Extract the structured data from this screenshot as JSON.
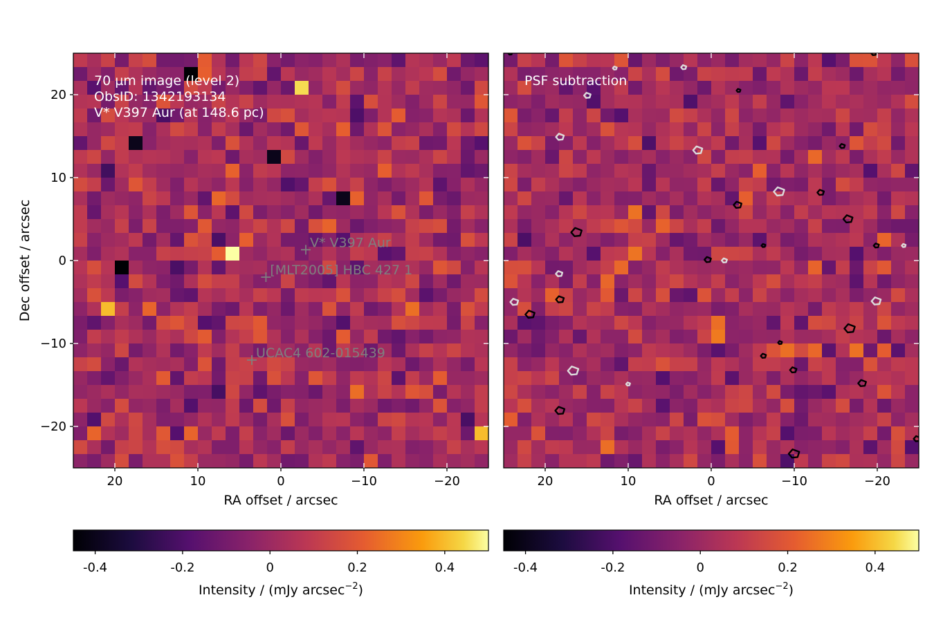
{
  "chart_data": [
    {
      "type": "heatmap",
      "panel": "left",
      "title": "",
      "annotations": [
        "70 µm image (level 2)",
        "ObsID: 1342193134",
        "V* V397 Aur (at 148.6 pc)"
      ],
      "xlabel": "RA offset / arcsec",
      "ylabel": "Dec offset / arcsec",
      "xlim": [
        25,
        -25
      ],
      "ylim": [
        -25,
        25
      ],
      "xticks": [
        20,
        10,
        0,
        -10,
        -20
      ],
      "xtick_labels": [
        "20",
        "10",
        "0",
        "−10",
        "−20"
      ],
      "yticks": [
        20,
        10,
        0,
        -10,
        -20
      ],
      "ytick_labels": [
        "20",
        "10",
        "0",
        "−10",
        "−20"
      ],
      "grid": false,
      "colormap": "inferno",
      "vmin": -0.45,
      "vmax": 0.5,
      "pixel_grid": [
        30,
        30
      ],
      "sources": [
        {
          "name": "V* V397 Aur",
          "x": -3.0,
          "y": 1.3
        },
        {
          "name": "[MLT2005] HBC 427 1",
          "x": 1.8,
          "y": -2.0
        },
        {
          "name": "UCAC4 602-015439",
          "x": 3.5,
          "y": -12.0
        }
      ],
      "bright_pixels": [
        {
          "x": 6.0,
          "y": 1.5,
          "value": 0.5
        },
        {
          "x": -3.0,
          "y": 20.3,
          "value": 0.45
        },
        {
          "x": 21.0,
          "y": -6.2,
          "value": 0.4
        },
        {
          "x": -24.3,
          "y": -20.8,
          "value": 0.4
        }
      ],
      "dark_pixels": [
        {
          "x": 11.5,
          "y": 22.5,
          "value": -0.45
        },
        {
          "x": 19.5,
          "y": -1.5,
          "value": -0.45
        },
        {
          "x": 18.0,
          "y": 14.5,
          "value": -0.4
        },
        {
          "x": 1.5,
          "y": 13.0,
          "value": -0.4
        },
        {
          "x": -8.0,
          "y": 8.0,
          "value": -0.4
        }
      ]
    },
    {
      "type": "heatmap",
      "panel": "right",
      "title": "",
      "annotations": [
        "PSF subtraction"
      ],
      "xlabel": "RA offset / arcsec",
      "ylabel": "",
      "xlim": [
        25,
        -25
      ],
      "ylim": [
        -25,
        25
      ],
      "xticks": [
        20,
        10,
        0,
        -10,
        -20
      ],
      "xtick_labels": [
        "20",
        "10",
        "0",
        "−10",
        "−20"
      ],
      "yticks": [
        20,
        10,
        0,
        -10,
        -20
      ],
      "grid": false,
      "colormap": "inferno",
      "vmin": -0.45,
      "vmax": 0.5,
      "pixel_grid": [
        30,
        30
      ],
      "contours": {
        "positive_color": "#000000",
        "negative_color": "#dcdcdc",
        "positive": [
          {
            "x": -3.3,
            "y": 20.5
          },
          {
            "x": -15.8,
            "y": 13.8
          },
          {
            "x": -13.2,
            "y": 8.2
          },
          {
            "x": -3.2,
            "y": 6.7
          },
          {
            "x": -16.5,
            "y": 5.0
          },
          {
            "x": 16.2,
            "y": 3.4
          },
          {
            "x": -6.3,
            "y": 1.8
          },
          {
            "x": -19.9,
            "y": 1.8
          },
          {
            "x": 0.4,
            "y": 0.1
          },
          {
            "x": 18.2,
            "y": -4.7
          },
          {
            "x": 21.8,
            "y": -6.5
          },
          {
            "x": -16.7,
            "y": -8.2
          },
          {
            "x": -8.3,
            "y": -9.9
          },
          {
            "x": -6.3,
            "y": -11.5
          },
          {
            "x": -9.9,
            "y": -13.2
          },
          {
            "x": -18.2,
            "y": -14.8
          },
          {
            "x": 18.2,
            "y": -18.1
          },
          {
            "x": -10.0,
            "y": -23.3
          },
          {
            "x": 24.2,
            "y": 25.0
          },
          {
            "x": -19.6,
            "y": 25.0
          },
          {
            "x": -24.8,
            "y": -21.5
          }
        ],
        "negative": [
          {
            "x": 11.6,
            "y": 23.2
          },
          {
            "x": 3.3,
            "y": 23.3
          },
          {
            "x": 14.9,
            "y": 19.9
          },
          {
            "x": 18.2,
            "y": 14.9
          },
          {
            "x": 1.6,
            "y": 13.3
          },
          {
            "x": -8.2,
            "y": 8.3
          },
          {
            "x": -23.2,
            "y": 1.8
          },
          {
            "x": -1.6,
            "y": 0.0
          },
          {
            "x": 18.3,
            "y": -1.6
          },
          {
            "x": 23.7,
            "y": -5.0
          },
          {
            "x": -19.9,
            "y": -4.9
          },
          {
            "x": 16.6,
            "y": -13.3
          },
          {
            "x": 10.0,
            "y": -14.9
          }
        ]
      }
    },
    {
      "type": "colorbar",
      "panel": "left",
      "orientation": "horizontal",
      "label": "Intensity / (mJy arcsec",
      "label_sup": "−2",
      "label_close": ")",
      "range": [
        -0.45,
        0.5
      ],
      "ticks": [
        -0.4,
        -0.2,
        0,
        0.2,
        0.4
      ],
      "tick_labels": [
        "-0.4",
        "-0.2",
        "0",
        "0.2",
        "0.4"
      ]
    },
    {
      "type": "colorbar",
      "panel": "right",
      "orientation": "horizontal",
      "label": "Intensity / (mJy arcsec",
      "label_sup": "−2",
      "label_close": ")",
      "range": [
        -0.45,
        0.5
      ],
      "ticks": [
        -0.4,
        -0.2,
        0,
        0.2,
        0.4
      ],
      "tick_labels": [
        "-0.4",
        "-0.2",
        "0",
        "0.2",
        "0.4"
      ]
    }
  ],
  "colors": {
    "source_marker": "#7f7f7f",
    "annotation_text": "#ffffff",
    "positive_contour": "#000000",
    "negative_contour": "#dcdcdc"
  }
}
